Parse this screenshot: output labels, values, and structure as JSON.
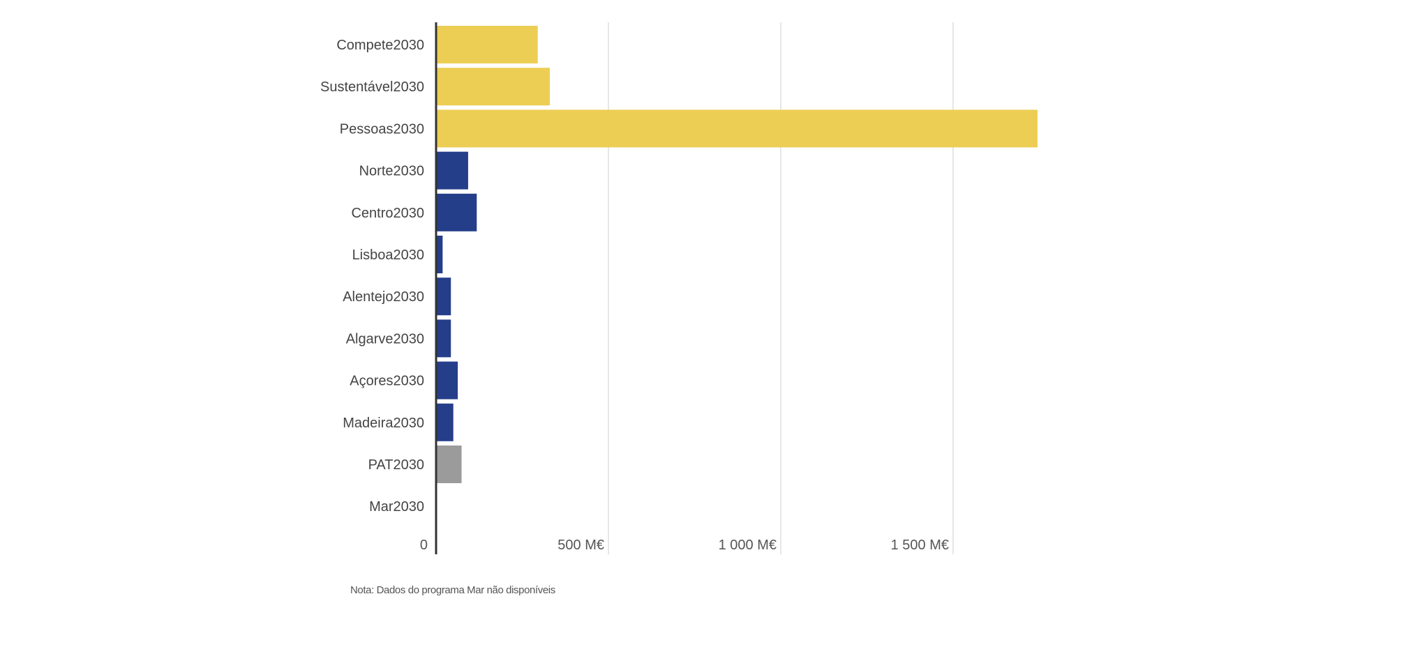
{
  "chart_data": {
    "type": "bar",
    "orientation": "horizontal",
    "categories": [
      "Compete2030",
      "Sustentável2030",
      "Pessoas2030",
      "Norte2030",
      "Centro2030",
      "Lisboa2030",
      "Alentejo2030",
      "Algarve2030",
      "Açores2030",
      "Madeira2030",
      "PAT2030",
      "Mar2030"
    ],
    "values": [
      295,
      330,
      1745,
      93,
      118,
      19,
      43,
      43,
      63,
      50,
      74,
      null
    ],
    "groups": [
      "thematic",
      "thematic",
      "thematic",
      "regional",
      "regional",
      "regional",
      "regional",
      "regional",
      "regional",
      "regional",
      "assistance",
      "thematic"
    ],
    "group_colors": {
      "thematic": "#ECCE55",
      "regional": "#253E8A",
      "assistance": "#9B9B9B"
    },
    "x_ticks": [
      {
        "value": 0,
        "label": "0"
      },
      {
        "value": 500,
        "label": "500 M€"
      },
      {
        "value": 1000,
        "label": "1 000 M€"
      },
      {
        "value": 1500,
        "label": "1 500 M€"
      }
    ],
    "xlim": [
      0,
      1750
    ],
    "grid": true,
    "xlabel": "",
    "ylabel": "",
    "title": ""
  },
  "note": "Nota: Dados do programa Mar não disponíveis"
}
